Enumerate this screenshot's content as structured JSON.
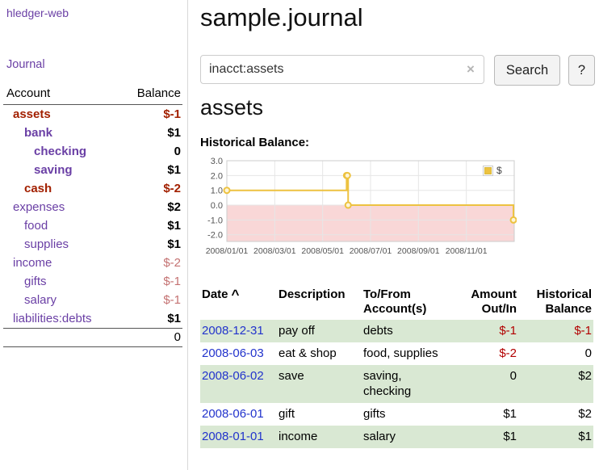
{
  "sidebar": {
    "app_title": "hledger-web",
    "nav": {
      "journal": "Journal"
    },
    "accounts": {
      "header": {
        "account": "Account",
        "balance": "Balance"
      },
      "rows": [
        {
          "name": "assets",
          "balance": "$-1"
        },
        {
          "name": "bank",
          "balance": "$1"
        },
        {
          "name": "checking",
          "balance": "0"
        },
        {
          "name": "saving",
          "balance": "$1"
        },
        {
          "name": "cash",
          "balance": "$-2"
        },
        {
          "name": "expenses",
          "balance": "$2"
        },
        {
          "name": "food",
          "balance": "$1"
        },
        {
          "name": "supplies",
          "balance": "$1"
        },
        {
          "name": "income",
          "balance": "$-2"
        },
        {
          "name": "gifts",
          "balance": "$-1"
        },
        {
          "name": "salary",
          "balance": "$-1"
        },
        {
          "name": "liabilities:debts",
          "balance": "$1"
        }
      ],
      "total": "0"
    }
  },
  "main": {
    "title": "sample.journal",
    "search": {
      "value": "inacct:assets",
      "clear_icon": "×",
      "button_label": "Search",
      "help_label": "?"
    },
    "account_heading": "assets",
    "chart_title": "Historical Balance:",
    "register": {
      "headers": {
        "date": "Date",
        "sort_indicator": "^",
        "description": "Description",
        "account_line1": "To/From",
        "account_line2": "Account(s)",
        "amount_line1": "Amount",
        "amount_line2": "Out/In",
        "balance_line1": "Historical",
        "balance_line2": "Balance"
      },
      "rows": [
        {
          "date": "2008-12-31",
          "description": "pay off",
          "accounts": "debts",
          "amount": "$-1",
          "balance": "$-1"
        },
        {
          "date": "2008-06-03",
          "description": "eat & shop",
          "accounts": "food, supplies",
          "amount": "$-2",
          "balance": "0"
        },
        {
          "date": "2008-06-02",
          "description": "save",
          "accounts": "saving, checking",
          "amount": "0",
          "balance": "$2"
        },
        {
          "date": "2008-06-01",
          "description": "gift",
          "accounts": "gifts",
          "amount": "$1",
          "balance": "$2"
        },
        {
          "date": "2008-01-01",
          "description": "income",
          "accounts": "salary",
          "amount": "$1",
          "balance": "$1"
        }
      ]
    }
  },
  "chart_data": {
    "type": "line",
    "style": "step",
    "title": "Historical Balance:",
    "series": [
      {
        "name": "$",
        "color": "#edc240",
        "points": [
          {
            "date": "2008-01-01",
            "value": 1
          },
          {
            "date": "2008-06-01",
            "value": 2
          },
          {
            "date": "2008-06-02",
            "value": 2
          },
          {
            "date": "2008-06-03",
            "value": 0
          },
          {
            "date": "2008-12-31",
            "value": -1
          }
        ]
      }
    ],
    "y_ticks": [
      "3.0",
      "2.0",
      "1.0",
      "0.0",
      "-1.0",
      "-2.0"
    ],
    "x_ticks": [
      "2008/01/01",
      "2008/03/01",
      "2008/05/01",
      "2008/07/01",
      "2008/09/01",
      "2008/11/01"
    ],
    "ylim": [
      -2.45,
      3.0
    ],
    "xlim_months": [
      0,
      12
    ],
    "grid": true,
    "negative_region_color": "#f9d7d7",
    "legend": {
      "label": "$",
      "position": "top-right"
    }
  },
  "colors": {
    "link_purple": "#6a3fa5",
    "link_blue": "#2233cc",
    "negative_red": "#a22000",
    "negative_light_red": "#c47272",
    "table_negative_red": "#b20000",
    "row_green": "#d9e8d3",
    "chart_line_gold": "#edc240",
    "chart_negative_pink": "#f9d7d7"
  }
}
